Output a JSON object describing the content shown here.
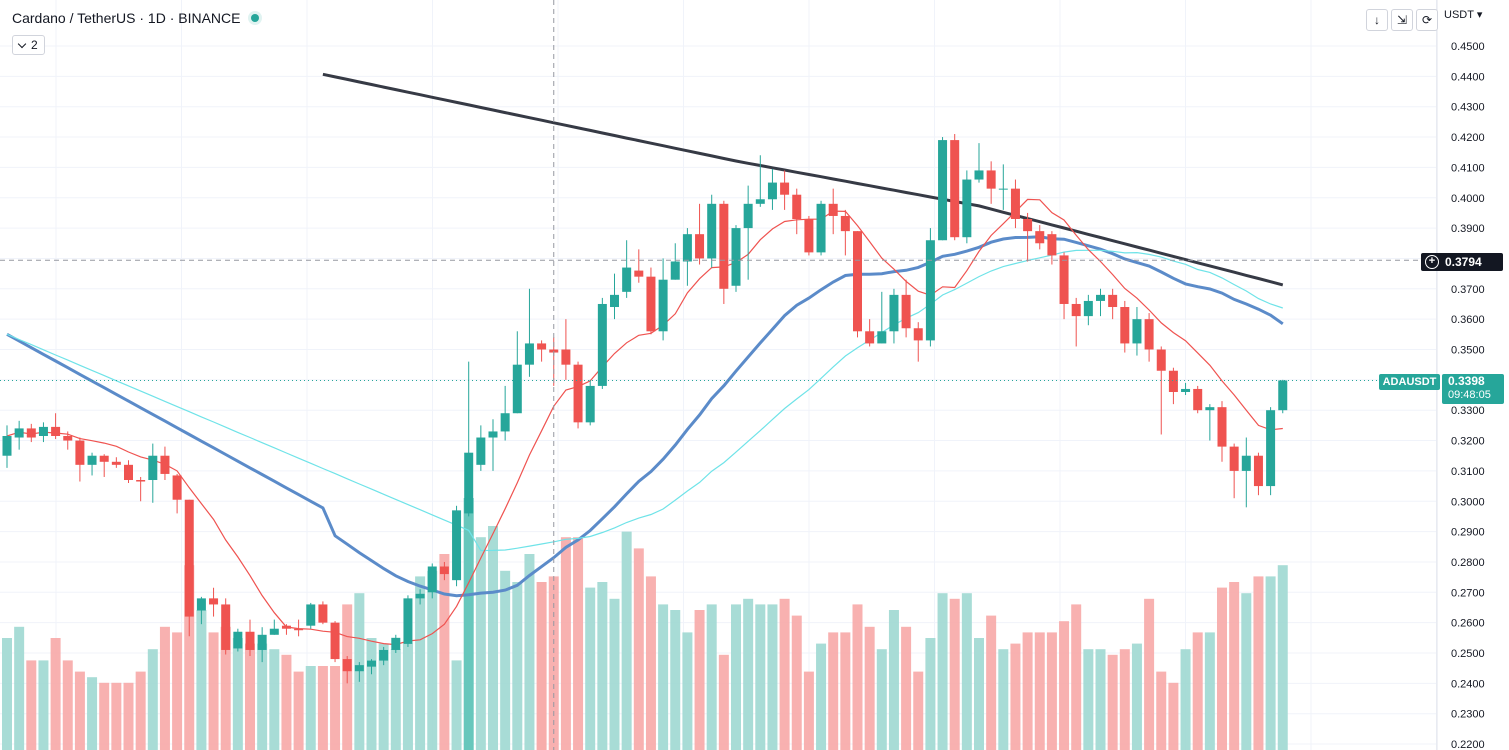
{
  "header": {
    "title": "Cardano / TetherUS · 1D · BINANCE",
    "indicators_count": "2",
    "currency": "USDT"
  },
  "crosshair_price": "0.3794",
  "last_price": {
    "symbol": "ADAUSDT",
    "price": "0.3398",
    "countdown": "09:48:05"
  },
  "colors": {
    "up": "#26a69a",
    "down": "#ef5350",
    "ma_long": "#363a45",
    "ma_mid": "#5b8bc9",
    "ma_short": "#ef5350",
    "ma_cyan": "#6fe3e8"
  },
  "chart_data": {
    "type": "candlestick",
    "y_axis": {
      "ticks": [
        "0.4500",
        "0.4400",
        "0.4300",
        "0.4200",
        "0.4100",
        "0.4000",
        "0.3900",
        "0.3800",
        "0.3700",
        "0.3600",
        "0.3500",
        "0.3400",
        "0.3300",
        "0.3200",
        "0.3100",
        "0.3000",
        "0.2900",
        "0.2800",
        "0.2700",
        "0.2600",
        "0.2500",
        "0.2400",
        "0.2300",
        "0.2200"
      ],
      "range": [
        0.22,
        0.4545
      ]
    },
    "candles": [
      [
        0.315,
        0.3215,
        0.325,
        0.311
      ],
      [
        0.321,
        0.324,
        0.3265,
        0.317
      ],
      [
        0.324,
        0.321,
        0.3255,
        0.3195
      ],
      [
        0.3215,
        0.3245,
        0.326,
        0.3195
      ],
      [
        0.3245,
        0.3215,
        0.329,
        0.3205
      ],
      [
        0.3215,
        0.32,
        0.323,
        0.317
      ],
      [
        0.32,
        0.312,
        0.321,
        0.3065
      ],
      [
        0.312,
        0.315,
        0.316,
        0.3085
      ],
      [
        0.315,
        0.313,
        0.3155,
        0.308
      ],
      [
        0.313,
        0.312,
        0.3145,
        0.311
      ],
      [
        0.312,
        0.307,
        0.3135,
        0.306
      ],
      [
        0.307,
        0.3065,
        0.308,
        0.3
      ],
      [
        0.307,
        0.315,
        0.319,
        0.2995
      ],
      [
        0.315,
        0.309,
        0.318,
        0.307
      ],
      [
        0.3085,
        0.3005,
        0.309,
        0.296
      ],
      [
        0.3005,
        0.262,
        0.3005,
        0.2555
      ],
      [
        0.264,
        0.268,
        0.2685,
        0.2595
      ],
      [
        0.268,
        0.266,
        0.2715,
        0.262
      ],
      [
        0.266,
        0.251,
        0.268,
        0.2495
      ],
      [
        0.2515,
        0.257,
        0.258,
        0.2505
      ],
      [
        0.257,
        0.251,
        0.261,
        0.249
      ],
      [
        0.251,
        0.256,
        0.2585,
        0.247
      ],
      [
        0.256,
        0.258,
        0.261,
        0.256
      ],
      [
        0.259,
        0.258,
        0.2595,
        0.256
      ],
      [
        0.258,
        0.2575,
        0.261,
        0.2555
      ],
      [
        0.259,
        0.266,
        0.2665,
        0.258
      ],
      [
        0.266,
        0.26,
        0.267,
        0.2595
      ],
      [
        0.26,
        0.248,
        0.2605,
        0.247
      ],
      [
        0.248,
        0.244,
        0.249,
        0.24
      ],
      [
        0.244,
        0.246,
        0.247,
        0.2405
      ],
      [
        0.2455,
        0.2475,
        0.248,
        0.243
      ],
      [
        0.2475,
        0.251,
        0.252,
        0.246
      ],
      [
        0.251,
        0.255,
        0.256,
        0.25
      ],
      [
        0.253,
        0.268,
        0.269,
        0.252
      ],
      [
        0.268,
        0.2695,
        0.271,
        0.266
      ],
      [
        0.27,
        0.2785,
        0.2795,
        0.268
      ],
      [
        0.2785,
        0.276,
        0.28,
        0.274
      ],
      [
        0.274,
        0.297,
        0.2985,
        0.272
      ],
      [
        0.296,
        0.316,
        0.346,
        0.295
      ],
      [
        0.312,
        0.321,
        0.325,
        0.31
      ],
      [
        0.321,
        0.323,
        0.327,
        0.31
      ],
      [
        0.323,
        0.329,
        0.338,
        0.32
      ],
      [
        0.329,
        0.345,
        0.356,
        0.329
      ],
      [
        0.345,
        0.352,
        0.37,
        0.341
      ],
      [
        0.352,
        0.35,
        0.353,
        0.346
      ],
      [
        0.35,
        0.349,
        0.354,
        0.338
      ],
      [
        0.35,
        0.345,
        0.36,
        0.34
      ],
      [
        0.345,
        0.326,
        0.346,
        0.324
      ],
      [
        0.326,
        0.338,
        0.34,
        0.325
      ],
      [
        0.338,
        0.365,
        0.367,
        0.337
      ],
      [
        0.364,
        0.368,
        0.375,
        0.36
      ],
      [
        0.369,
        0.377,
        0.386,
        0.367
      ],
      [
        0.376,
        0.374,
        0.383,
        0.372
      ],
      [
        0.374,
        0.356,
        0.377,
        0.355
      ],
      [
        0.356,
        0.373,
        0.38,
        0.353
      ],
      [
        0.373,
        0.379,
        0.385,
        0.373
      ],
      [
        0.379,
        0.388,
        0.39,
        0.371
      ],
      [
        0.388,
        0.38,
        0.398,
        0.378
      ],
      [
        0.38,
        0.398,
        0.401,
        0.377
      ],
      [
        0.398,
        0.37,
        0.399,
        0.365
      ],
      [
        0.371,
        0.39,
        0.391,
        0.369
      ],
      [
        0.39,
        0.398,
        0.404,
        0.373
      ],
      [
        0.398,
        0.3995,
        0.414,
        0.397
      ],
      [
        0.3995,
        0.405,
        0.4095,
        0.396
      ],
      [
        0.405,
        0.401,
        0.409,
        0.396
      ],
      [
        0.401,
        0.393,
        0.403,
        0.388
      ],
      [
        0.393,
        0.382,
        0.394,
        0.381
      ],
      [
        0.382,
        0.398,
        0.399,
        0.381
      ],
      [
        0.398,
        0.394,
        0.403,
        0.388
      ],
      [
        0.394,
        0.389,
        0.396,
        0.381
      ],
      [
        0.389,
        0.356,
        0.389,
        0.354
      ],
      [
        0.356,
        0.352,
        0.36,
        0.351
      ],
      [
        0.352,
        0.356,
        0.369,
        0.352
      ],
      [
        0.356,
        0.368,
        0.37,
        0.352
      ],
      [
        0.368,
        0.357,
        0.373,
        0.354
      ],
      [
        0.357,
        0.353,
        0.359,
        0.346
      ],
      [
        0.353,
        0.386,
        0.39,
        0.351
      ],
      [
        0.386,
        0.419,
        0.42,
        0.386
      ],
      [
        0.419,
        0.387,
        0.421,
        0.386
      ],
      [
        0.387,
        0.406,
        0.409,
        0.385
      ],
      [
        0.406,
        0.409,
        0.418,
        0.405
      ],
      [
        0.409,
        0.403,
        0.412,
        0.398
      ],
      [
        0.403,
        0.403,
        0.411,
        0.396
      ],
      [
        0.403,
        0.393,
        0.406,
        0.39
      ],
      [
        0.393,
        0.389,
        0.395,
        0.379
      ],
      [
        0.389,
        0.385,
        0.391,
        0.383
      ],
      [
        0.388,
        0.381,
        0.389,
        0.378
      ],
      [
        0.381,
        0.365,
        0.382,
        0.36
      ],
      [
        0.365,
        0.361,
        0.367,
        0.351
      ],
      [
        0.361,
        0.366,
        0.368,
        0.358
      ],
      [
        0.366,
        0.368,
        0.37,
        0.361
      ],
      [
        0.368,
        0.364,
        0.37,
        0.36
      ],
      [
        0.364,
        0.352,
        0.366,
        0.349
      ],
      [
        0.352,
        0.36,
        0.364,
        0.348
      ],
      [
        0.36,
        0.35,
        0.362,
        0.346
      ],
      [
        0.35,
        0.343,
        0.351,
        0.322
      ],
      [
        0.343,
        0.336,
        0.344,
        0.332
      ],
      [
        0.336,
        0.337,
        0.339,
        0.335
      ],
      [
        0.337,
        0.33,
        0.338,
        0.329
      ],
      [
        0.33,
        0.331,
        0.332,
        0.32
      ],
      [
        0.331,
        0.318,
        0.333,
        0.313
      ],
      [
        0.318,
        0.31,
        0.319,
        0.301
      ],
      [
        0.31,
        0.315,
        0.321,
        0.298
      ],
      [
        0.315,
        0.305,
        0.316,
        0.302
      ],
      [
        0.305,
        0.33,
        0.331,
        0.302
      ],
      [
        0.33,
        0.3398,
        0.34,
        0.329
      ]
    ],
    "volume": [
      0.2,
      0.22,
      0.16,
      0.16,
      0.2,
      0.16,
      0.14,
      0.13,
      0.12,
      0.12,
      0.12,
      0.14,
      0.18,
      0.22,
      0.21,
      0.33,
      0.25,
      0.21,
      0.22,
      0.2,
      0.19,
      0.19,
      0.18,
      0.17,
      0.14,
      0.15,
      0.15,
      0.15,
      0.26,
      0.28,
      0.2,
      0.19,
      0.18,
      0.19,
      0.31,
      0.32,
      0.35,
      0.16,
      0.45,
      0.38,
      0.4,
      0.32,
      0.3,
      0.35,
      0.3,
      0.31,
      0.38,
      0.38,
      0.29,
      0.3,
      0.27,
      0.39,
      0.36,
      0.31,
      0.26,
      0.25,
      0.21,
      0.25,
      0.26,
      0.17,
      0.26,
      0.27,
      0.26,
      0.26,
      0.27,
      0.24,
      0.14,
      0.19,
      0.21,
      0.21,
      0.26,
      0.22,
      0.18,
      0.25,
      0.22,
      0.14,
      0.2,
      0.28,
      0.27,
      0.28,
      0.2,
      0.24,
      0.18,
      0.19,
      0.21,
      0.21,
      0.21,
      0.23,
      0.26,
      0.18,
      0.18,
      0.17,
      0.18,
      0.19,
      0.27,
      0.14,
      0.12,
      0.18,
      0.21,
      0.21,
      0.29,
      0.3,
      0.28,
      0.31,
      0.31,
      0.33
    ],
    "volume_highlight": [
      38,
      44
    ]
  }
}
